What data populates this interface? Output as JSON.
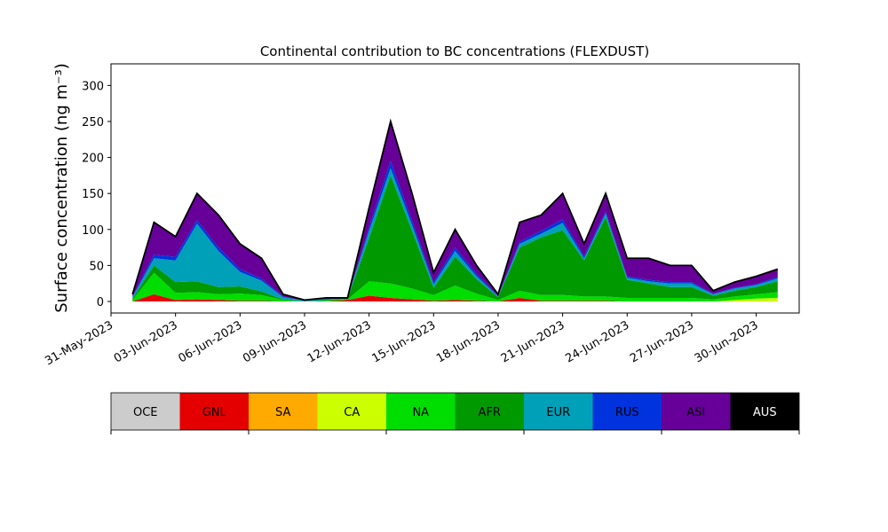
{
  "chart_data": {
    "type": "stacked_area",
    "title": "Continental contribution to BC concentrations (FLEXDUST)",
    "y_label": "Surface concentration (ng m⁻³)",
    "x": [
      "2023-06-01",
      "2023-06-02",
      "2023-06-03",
      "2023-06-04",
      "2023-06-05",
      "2023-06-06",
      "2023-06-07",
      "2023-06-08",
      "2023-06-09",
      "2023-06-10",
      "2023-06-11",
      "2023-06-12",
      "2023-06-13",
      "2023-06-14",
      "2023-06-15",
      "2023-06-16",
      "2023-06-17",
      "2023-06-18",
      "2023-06-19",
      "2023-06-20",
      "2023-06-21",
      "2023-06-22",
      "2023-06-23",
      "2023-06-24",
      "2023-06-25",
      "2023-06-26",
      "2023-06-27",
      "2023-06-28",
      "2023-06-29",
      "2023-06-30",
      "2023-07-01"
    ],
    "series": [
      {
        "name": "OCE",
        "color": "#cccccc",
        "values": [
          0,
          0,
          0,
          0,
          0,
          0,
          0,
          0,
          0,
          0,
          0,
          0,
          0,
          0,
          0,
          0,
          0,
          0,
          0,
          0,
          0,
          0,
          0,
          0,
          0,
          0,
          0,
          0,
          0,
          0,
          0
        ]
      },
      {
        "name": "GNL",
        "color": "#e50000",
        "values": [
          0,
          10,
          2,
          3,
          2,
          1,
          1,
          0,
          0,
          0,
          2,
          8,
          5,
          3,
          1,
          2,
          1,
          0,
          5,
          1,
          1,
          1,
          1,
          0,
          0,
          0,
          0,
          0,
          0,
          0,
          0
        ]
      },
      {
        "name": "SA",
        "color": "#ffaa00",
        "values": [
          0,
          0,
          0,
          0,
          0,
          0,
          0,
          0,
          0,
          0,
          0,
          0,
          0,
          0,
          0,
          0,
          0,
          0,
          0,
          0,
          0,
          0,
          0,
          0,
          0,
          0,
          0,
          0,
          0,
          0,
          0
        ]
      },
      {
        "name": "CA",
        "color": "#ccff00",
        "values": [
          0,
          0,
          0,
          0,
          0,
          0,
          0,
          0,
          0,
          0,
          0,
          0,
          0,
          0,
          0,
          0,
          0,
          0,
          0,
          0,
          0,
          0,
          0,
          0,
          0,
          0,
          0,
          0,
          2,
          4,
          5
        ]
      },
      {
        "name": "NA",
        "color": "#00dd00",
        "values": [
          2,
          30,
          10,
          10,
          8,
          10,
          8,
          2,
          0,
          1,
          1,
          20,
          20,
          15,
          8,
          20,
          10,
          2,
          10,
          8,
          8,
          6,
          6,
          5,
          5,
          5,
          5,
          3,
          5,
          6,
          8
        ]
      },
      {
        "name": "AFR",
        "color": "#009900",
        "values": [
          2,
          10,
          15,
          15,
          10,
          10,
          5,
          1,
          0,
          1,
          1,
          60,
          150,
          80,
          10,
          40,
          20,
          4,
          60,
          80,
          90,
          50,
          110,
          25,
          20,
          15,
          15,
          5,
          8,
          10,
          15
        ]
      },
      {
        "name": "EUR",
        "color": "#00a0b8",
        "values": [
          2,
          10,
          30,
          80,
          50,
          20,
          15,
          3,
          1,
          1,
          1,
          10,
          10,
          8,
          5,
          8,
          4,
          1,
          5,
          5,
          10,
          3,
          5,
          3,
          3,
          5,
          5,
          2,
          3,
          3,
          4
        ]
      },
      {
        "name": "RUS",
        "color": "#0033dd",
        "values": [
          1,
          5,
          5,
          5,
          5,
          4,
          3,
          1,
          0,
          1,
          0,
          5,
          10,
          6,
          3,
          5,
          3,
          1,
          3,
          4,
          5,
          3,
          3,
          2,
          2,
          2,
          2,
          1,
          1,
          1,
          2
        ]
      },
      {
        "name": "ASI",
        "color": "#660099",
        "values": [
          3,
          45,
          28,
          37,
          45,
          35,
          28,
          3,
          1,
          1,
          0,
          27,
          55,
          38,
          13,
          25,
          12,
          2,
          27,
          22,
          36,
          17,
          25,
          25,
          30,
          23,
          23,
          4,
          8,
          11,
          11
        ]
      },
      {
        "name": "AUS",
        "color": "#000000",
        "values": [
          0,
          0,
          0,
          0,
          0,
          0,
          0,
          0,
          0,
          0,
          0,
          0,
          0,
          0,
          0,
          0,
          0,
          0,
          0,
          0,
          0,
          0,
          0,
          0,
          0,
          0,
          0,
          0,
          0,
          0,
          0
        ]
      }
    ],
    "xlim": [
      "2023-05-31",
      "2023-07-02"
    ],
    "xticks": [
      {
        "value": "2023-05-31",
        "label": "31-May-2023"
      },
      {
        "value": "2023-06-03",
        "label": "03-Jun-2023"
      },
      {
        "value": "2023-06-06",
        "label": "06-Jun-2023"
      },
      {
        "value": "2023-06-09",
        "label": "09-Jun-2023"
      },
      {
        "value": "2023-06-12",
        "label": "12-Jun-2023"
      },
      {
        "value": "2023-06-15",
        "label": "15-Jun-2023"
      },
      {
        "value": "2023-06-18",
        "label": "18-Jun-2023"
      },
      {
        "value": "2023-06-21",
        "label": "21-Jun-2023"
      },
      {
        "value": "2023-06-24",
        "label": "24-Jun-2023"
      },
      {
        "value": "2023-06-27",
        "label": "27-Jun-2023"
      },
      {
        "value": "2023-06-30",
        "label": "30-Jun-2023"
      }
    ],
    "ylim": [
      -16,
      330
    ],
    "yticks": [
      0,
      50,
      100,
      150,
      200,
      250,
      300
    ]
  }
}
